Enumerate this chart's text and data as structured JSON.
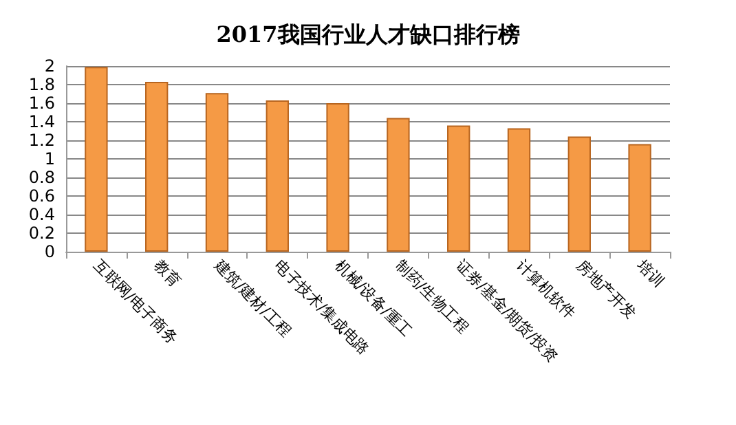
{
  "chart_data": {
    "type": "bar",
    "title": "2017我国行业人才缺口排行榜",
    "categories": [
      "互联网/电子商务",
      "教育",
      "建筑/建材/工程",
      "电子技术/集成电路",
      "机械/设备/重工",
      "制药/生物工程",
      "证券/基金/期货/投资",
      "计算机软件",
      "房地产开发",
      "培训"
    ],
    "values": [
      1.99,
      1.83,
      1.71,
      1.63,
      1.6,
      1.44,
      1.36,
      1.33,
      1.24,
      1.16
    ],
    "color": "#f59a45",
    "ylim": [
      0,
      2
    ],
    "yticks": [
      0,
      0.2,
      0.4,
      0.6,
      0.8,
      1,
      1.2,
      1.4,
      1.6,
      1.8,
      2
    ],
    "grid": "y"
  }
}
